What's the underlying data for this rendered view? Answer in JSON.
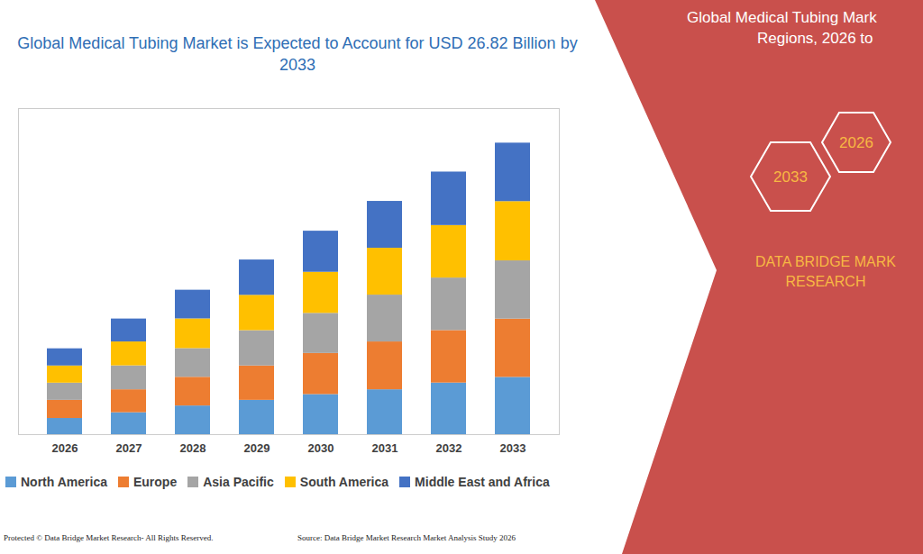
{
  "chart_data": {
    "type": "bar",
    "stacked": true,
    "title": "Global Medical Tubing Market is Expected to Account for USD 26.82 Billion by 2033",
    "categories": [
      "2026",
      "2027",
      "2028",
      "2029",
      "2030",
      "2031",
      "2032",
      "2033"
    ],
    "series": [
      {
        "name": "North America",
        "color": "#5b9bd5",
        "values": [
          1.49,
          2.02,
          2.64,
          3.16,
          3.69,
          4.13,
          4.75,
          5.27
        ]
      },
      {
        "name": "Europe",
        "color": "#ed7d31",
        "values": [
          1.67,
          2.11,
          2.64,
          3.16,
          3.78,
          4.4,
          4.83,
          5.36
        ]
      },
      {
        "name": "Asia Pacific",
        "color": "#a5a5a5",
        "values": [
          1.58,
          2.2,
          2.64,
          3.25,
          3.69,
          4.31,
          4.83,
          5.36
        ]
      },
      {
        "name": "South America",
        "color": "#ffc000",
        "values": [
          1.58,
          2.2,
          2.73,
          3.25,
          3.78,
          4.31,
          4.83,
          5.45
        ]
      },
      {
        "name": "Middle East and Africa",
        "color": "#4472c4",
        "values": [
          1.58,
          2.11,
          2.64,
          3.25,
          3.78,
          4.31,
          4.92,
          5.38
        ]
      }
    ],
    "ylim": [
      0,
      30
    ],
    "tick_labels": "x",
    "legend": "bottom",
    "annotations": {
      "side_title": [
        "Global Medical Tubing Mark",
        "Regions, 2026 to"
      ],
      "hexagons": [
        "2026",
        "2033"
      ],
      "brand": [
        "DATA BRIDGE MARK",
        "RESEARCH"
      ],
      "copyright": "Protected © Data Bridge Market Research- All Rights Reserved.",
      "source": "Source: Data Bridge Market Research Market Analysis Study 2026"
    }
  }
}
